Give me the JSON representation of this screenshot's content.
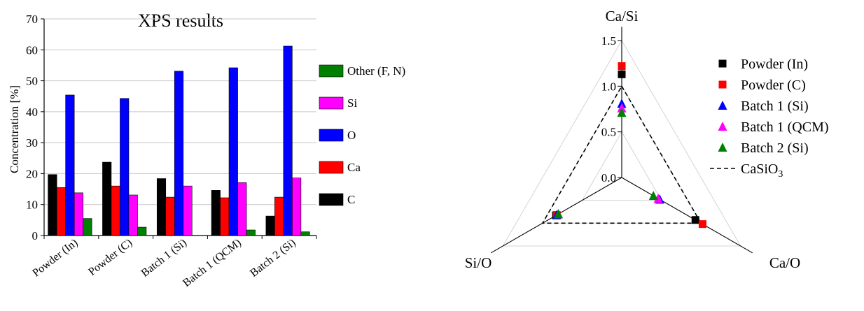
{
  "chart_data": [
    {
      "type": "bar",
      "title": "XPS results",
      "xlabel": "",
      "ylabel": "Concentration [%]",
      "ylim": [
        0,
        70
      ],
      "yticks": [
        0,
        10,
        20,
        30,
        40,
        50,
        60,
        70
      ],
      "grid": true,
      "legend_position": "right",
      "categories": [
        "Powder (In)",
        "Powder (C)",
        "Batch 1 (Si)",
        "Batch 1 (QCM)",
        "Batch 2 (Si)"
      ],
      "series": [
        {
          "name": "C",
          "color": "#000000",
          "values": [
            19.7,
            23.7,
            18.4,
            14.6,
            6.3
          ]
        },
        {
          "name": "Ca",
          "color": "#ff0000",
          "values": [
            15.5,
            16.0,
            12.4,
            12.2,
            12.4
          ]
        },
        {
          "name": "O",
          "color": "#0000ff",
          "values": [
            45.4,
            44.3,
            53.1,
            54.2,
            61.2
          ]
        },
        {
          "name": "Si",
          "color": "#ff00ff",
          "values": [
            13.8,
            13.1,
            16.0,
            17.1,
            18.6
          ]
        },
        {
          "name": "Other (F, N)",
          "color": "#008000",
          "values": [
            5.5,
            2.7,
            0.0,
            1.8,
            1.2
          ]
        }
      ],
      "legend_order": [
        "Other (F, N)",
        "Si",
        "O",
        "Ca",
        "C"
      ]
    },
    {
      "type": "radar",
      "axes": [
        "Ca/Si",
        "Ca/O",
        "Si/O"
      ],
      "rlim": [
        0,
        1.5
      ],
      "rticks": [
        "0.0",
        "0.5",
        "1.0",
        "1.5"
      ],
      "legend_position": "right",
      "series": [
        {
          "name": "Powder (In)",
          "marker": "square",
          "color": "#000000",
          "values": [
            1.13,
            0.93,
            0.83
          ]
        },
        {
          "name": "Powder (C)",
          "marker": "square",
          "color": "#ff0000",
          "values": [
            1.22,
            1.02,
            0.82
          ]
        },
        {
          "name": "Batch 1 (Si)",
          "marker": "triangle",
          "color": "#0000ff",
          "values": [
            0.81,
            0.48,
            0.82
          ]
        },
        {
          "name": "Batch 1 (QCM)",
          "marker": "triangle",
          "color": "#ff00ff",
          "values": [
            0.76,
            0.46,
            0.8
          ]
        },
        {
          "name": "Batch 2 (Si)",
          "marker": "triangle",
          "color": "#008000",
          "values": [
            0.71,
            0.4,
            0.8
          ]
        }
      ],
      "reference": {
        "name": "CaSiO",
        "subscript": "3",
        "style": "dashed",
        "values": [
          1.0,
          1.0,
          1.0
        ]
      }
    }
  ]
}
